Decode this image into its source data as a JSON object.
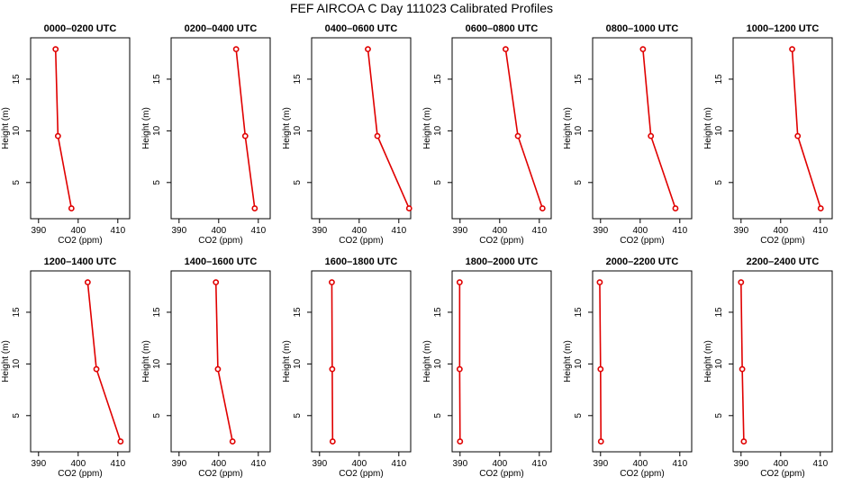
{
  "title": "FEF AIRCOA C  Day 111023  Calibrated Profiles",
  "chart_data": {
    "type": "line",
    "xlabel": "CO2 (ppm)",
    "ylabel": "Height (m)",
    "xlim": [
      388,
      413
    ],
    "ylim": [
      1.5,
      19
    ],
    "xticks": [
      390,
      400,
      410
    ],
    "yticks": [
      5,
      10,
      15
    ],
    "line_color": "#e00000",
    "heights": [
      17.9,
      9.5,
      2.5
    ],
    "panels": [
      {
        "title": "0000–0200 UTC",
        "co2": [
          394.3,
          394.9,
          398.3
        ]
      },
      {
        "title": "0200–0400 UTC",
        "co2": [
          404.4,
          406.7,
          409.1
        ]
      },
      {
        "title": "0400–0600 UTC",
        "co2": [
          402.2,
          404.6,
          412.6
        ]
      },
      {
        "title": "0600–0800 UTC",
        "co2": [
          401.5,
          404.6,
          410.8
        ]
      },
      {
        "title": "0800–1000 UTC",
        "co2": [
          400.7,
          402.7,
          408.9
        ]
      },
      {
        "title": "1000–1200 UTC",
        "co2": [
          402.9,
          404.3,
          410.1
        ]
      },
      {
        "title": "1200–1400 UTC",
        "co2": [
          402.4,
          404.6,
          410.7
        ]
      },
      {
        "title": "1400–1600 UTC",
        "co2": [
          399.3,
          399.8,
          403.5
        ]
      },
      {
        "title": "1600–1800 UTC",
        "co2": [
          393.1,
          393.2,
          393.3
        ]
      },
      {
        "title": "1800–2000 UTC",
        "co2": [
          389.9,
          389.9,
          390.0
        ]
      },
      {
        "title": "2000–2200 UTC",
        "co2": [
          389.8,
          390.0,
          390.1
        ]
      },
      {
        "title": "2200–2400 UTC",
        "co2": [
          390.0,
          390.3,
          390.7
        ]
      }
    ]
  }
}
